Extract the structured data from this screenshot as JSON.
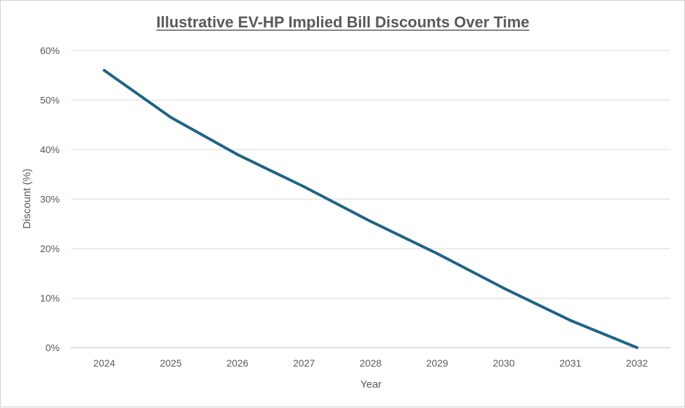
{
  "chart_data": {
    "type": "line",
    "title": "Illustrative EV-HP Implied Bill Discounts Over Time",
    "xlabel": "Year",
    "ylabel": "Discount (%)",
    "categories": [
      "2024",
      "2025",
      "2026",
      "2027",
      "2028",
      "2029",
      "2030",
      "2031",
      "2032"
    ],
    "series": [
      {
        "values": [
          56,
          46.5,
          39,
          32.5,
          25.5,
          19,
          12,
          5.5,
          0
        ],
        "color": "#1f6385"
      }
    ],
    "ylim": [
      0,
      60
    ],
    "yticks": [
      0,
      10,
      20,
      30,
      40,
      50,
      60
    ],
    "ytick_format": "percent",
    "grid": "horizontal",
    "legend": "none"
  }
}
